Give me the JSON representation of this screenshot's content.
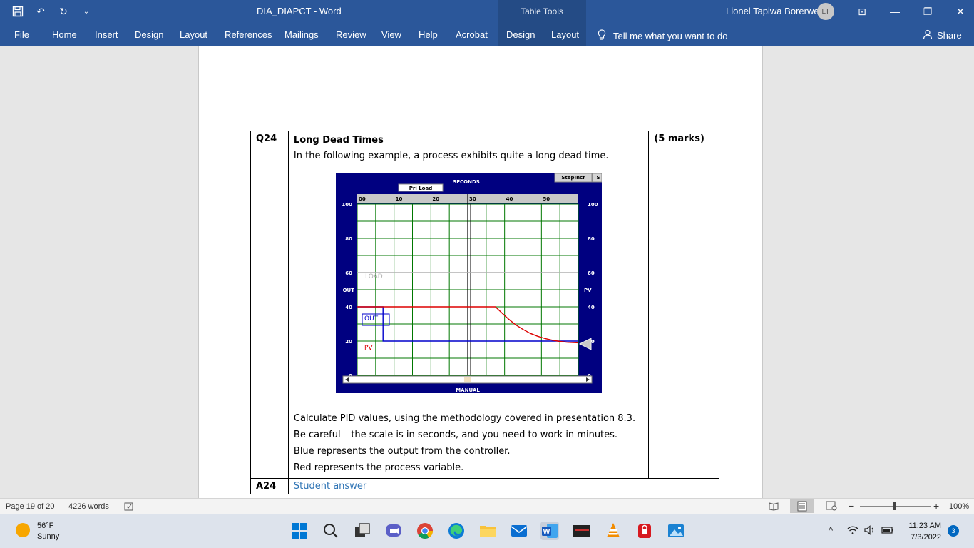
{
  "titlebar": {
    "doc_title": "DIA_DIAPCT  -  Word",
    "table_tools": "Table Tools",
    "user_name": "Lionel Tapiwa Borerwe",
    "user_initials": "LT"
  },
  "ribbon": {
    "tabs": [
      "File",
      "Home",
      "Insert",
      "Design",
      "Layout",
      "References",
      "Mailings",
      "Review",
      "View",
      "Help",
      "Acrobat",
      "Design",
      "Layout"
    ],
    "tell_me": "Tell me what you want to do",
    "share": "Share"
  },
  "question": {
    "number": "Q24",
    "title": "Long Dead Times",
    "intro": "In the following example, a process exhibits quite a long dead time.",
    "marks": "(5 marks)",
    "lines": [
      "Calculate PID values, using the methodology covered in presentation 8.3.",
      "Be careful – the scale is in seconds, and you need to work in minutes.",
      "Blue represents the output from the controller.",
      "Red represents the process variable."
    ],
    "answer_number": "A24",
    "answer_placeholder": "Student answer"
  },
  "chart_data": {
    "type": "line",
    "title": "SECONDS",
    "button_top_left": "Pri Load",
    "button_top_right": "StepIncr",
    "button_top_right_cut": "S",
    "bottom_label": "MANUAL",
    "x_ticks": [
      "00",
      "10",
      "20",
      "30",
      "40",
      "50"
    ],
    "xlim": [
      0,
      60
    ],
    "ylim": [
      0,
      100
    ],
    "y_ticks_left": [
      "100",
      "80",
      "60",
      "40",
      "20",
      "0"
    ],
    "y_ticks_right": [
      "100",
      "80",
      "60",
      "40",
      "20",
      "0"
    ],
    "left_axis_label": "OUT",
    "right_axis_label": "PV",
    "series": [
      {
        "name": "LOAD",
        "color": "#b0b0b0",
        "points": [
          [
            0,
            60
          ],
          [
            60,
            60
          ]
        ]
      },
      {
        "name": "OUT",
        "color": "#0000cc",
        "points": [
          [
            0,
            40
          ],
          [
            7,
            40
          ],
          [
            7,
            20
          ],
          [
            60,
            20
          ]
        ]
      },
      {
        "name": "PV",
        "color": "#dd0000",
        "points": [
          [
            0,
            40
          ],
          [
            37.5,
            40
          ],
          [
            39,
            37
          ],
          [
            41,
            33
          ],
          [
            43,
            29.5
          ],
          [
            45,
            26.8
          ],
          [
            47,
            24.5
          ],
          [
            49,
            22.8
          ],
          [
            51,
            21.5
          ],
          [
            53,
            20.5
          ],
          [
            55,
            19.8
          ],
          [
            57,
            19.3
          ],
          [
            60,
            19
          ]
        ]
      }
    ],
    "cursor_x": 30,
    "grid": true,
    "colors": {
      "background": "#000080",
      "plot": "#ffffff",
      "grid": "#007700"
    }
  },
  "statusbar": {
    "page": "Page 19 of 20",
    "words": "4226 words",
    "zoom": "100%"
  },
  "taskbar": {
    "temp": "56°F",
    "condition": "Sunny",
    "time": "11:23 AM",
    "date": "7/3/2022",
    "notifications": "3"
  }
}
